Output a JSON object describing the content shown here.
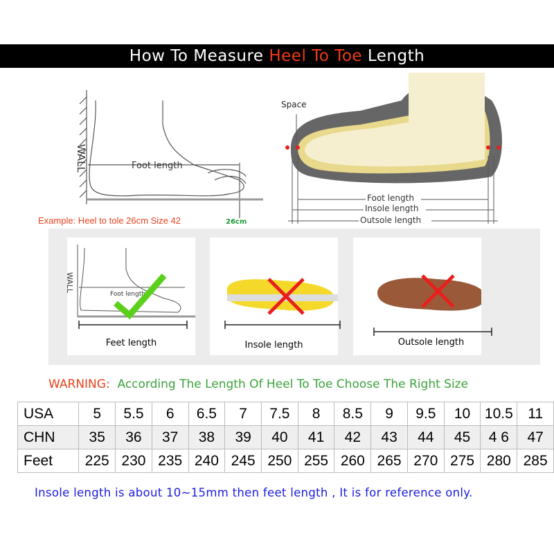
{
  "title": {
    "prefix": "How To Measure ",
    "highlight": "Heel To Toe",
    "suffix": " Length"
  },
  "diagram_left": {
    "wall": "WALL",
    "foot_length": "Foot length",
    "example": "Example: Heel to tole 26cm Size 42",
    "mark": "26cm"
  },
  "diagram_right": {
    "space": "Space",
    "foot_length": "Foot length",
    "insole_length": "Insole length",
    "outsole_length": "Outsole length"
  },
  "panels": [
    {
      "label": "Feet length",
      "wall": "WALL",
      "inner": "Foot length",
      "status": "correct"
    },
    {
      "label": "Insole length",
      "status": "wrong"
    },
    {
      "label": "Outsole length",
      "status": "wrong"
    }
  ],
  "warning": {
    "prefix": "WARNING:",
    "text": "According The Length Of Heel To Toe Choose The Right Size"
  },
  "size_table": {
    "rows": [
      {
        "label": "USA",
        "values": [
          "5",
          "5.5",
          "6",
          "6.5",
          "7",
          "7.5",
          "8",
          "8.5",
          "9",
          "9.5",
          "10",
          "10.5",
          "11"
        ]
      },
      {
        "label": "CHN",
        "values": [
          "35",
          "36",
          "37",
          "38",
          "39",
          "40",
          "41",
          "42",
          "43",
          "44",
          "45",
          "4 6",
          "47"
        ]
      },
      {
        "label": "Feet",
        "values": [
          "225",
          "230",
          "235",
          "240",
          "245",
          "250",
          "255",
          "260",
          "265",
          "270",
          "275",
          "280",
          "285"
        ]
      }
    ]
  },
  "note": "Insole length is about 10~15mm then feet length , It is for reference only.",
  "colors": {
    "highlight": "#f03a1a",
    "warning_green": "#3aa33a",
    "note_blue": "#1a1ae0",
    "cross": "#e8201c",
    "check": "#5ad01a"
  }
}
